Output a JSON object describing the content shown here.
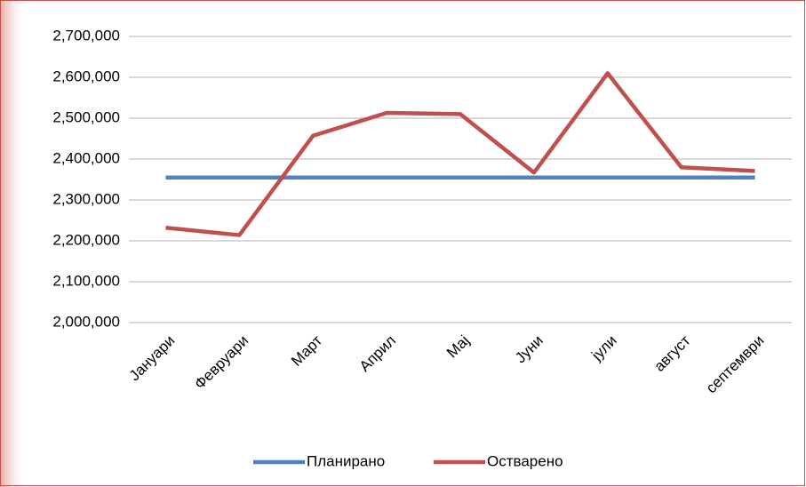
{
  "chart_data": {
    "type": "line",
    "categories": [
      "Јануари",
      "Февруари",
      "Март",
      "Април",
      "Мај",
      "Јуни",
      "јули",
      "август",
      "септември"
    ],
    "series": [
      {
        "name": "Планирано",
        "color": "#4f81bd",
        "values": [
          2355000,
          2355000,
          2355000,
          2355000,
          2355000,
          2355000,
          2355000,
          2355000,
          2355000
        ]
      },
      {
        "name": "Остварено",
        "color": "#c0504d",
        "values": [
          2232000,
          2214000,
          2457000,
          2513000,
          2510000,
          2367000,
          2610000,
          2380000,
          2371000
        ]
      }
    ],
    "ylim": [
      2000000,
      2700000
    ],
    "yticks": [
      {
        "value": 2000000,
        "label": "2,000,000"
      },
      {
        "value": 2100000,
        "label": "2,100,000"
      },
      {
        "value": 2200000,
        "label": "2,200,000"
      },
      {
        "value": 2300000,
        "label": "2,300,000"
      },
      {
        "value": 2400000,
        "label": "2,400,000"
      },
      {
        "value": 2500000,
        "label": "2,500,000"
      },
      {
        "value": 2600000,
        "label": "2,600,000"
      },
      {
        "value": 2700000,
        "label": "2,700,000"
      }
    ],
    "grid": true,
    "legend": "bottom"
  }
}
